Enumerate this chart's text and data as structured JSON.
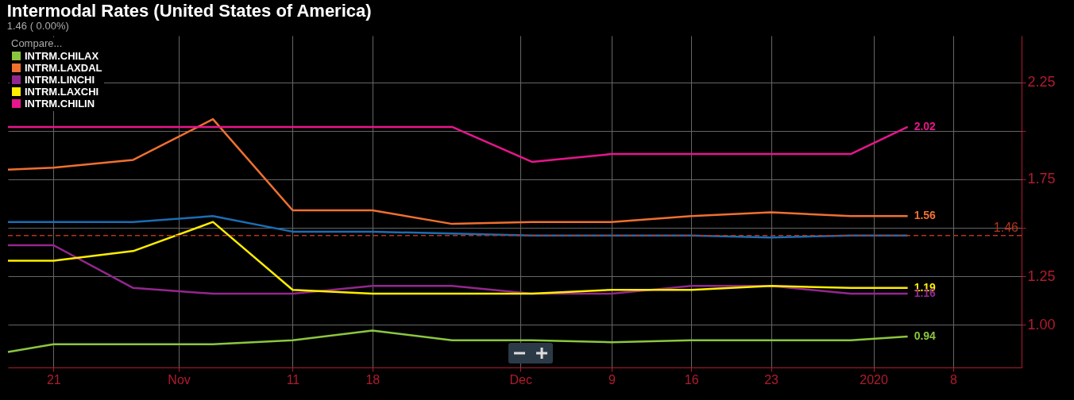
{
  "chart_data": {
    "type": "line",
    "title": "Intermodal Rates (United States of America)",
    "subtitle": "1.46 ( 0.00%)",
    "legend_title": "Compare...",
    "x": [
      "2019-10-17",
      "2019-10-21",
      "2019-10-28",
      "2019-11-04",
      "2019-11-11",
      "2019-11-18",
      "2019-11-25",
      "2019-12-02",
      "2019-12-09",
      "2019-12-16",
      "2019-12-23",
      "2019-12-30",
      "2020-01-04"
    ],
    "series": [
      {
        "name": "INTRM.CHILAX",
        "color": "#8cc63f",
        "values": [
          0.86,
          0.9,
          0.9,
          0.9,
          0.92,
          0.97,
          0.92,
          0.92,
          0.91,
          0.92,
          0.92,
          0.92,
          0.94
        ],
        "value_labels": [
          null,
          null,
          null,
          null,
          null,
          null,
          null,
          null,
          null,
          null,
          null,
          null,
          "0.94"
        ]
      },
      {
        "name": "INTRM.LAXDAL",
        "color": "#f07030",
        "values": [
          1.8,
          1.81,
          1.85,
          2.06,
          1.59,
          1.59,
          1.52,
          1.53,
          1.53,
          1.56,
          1.58,
          1.56,
          1.56
        ],
        "value_labels": [
          null,
          null,
          null,
          null,
          null,
          null,
          null,
          null,
          null,
          null,
          null,
          null,
          "1.56"
        ]
      },
      {
        "name": "INTRM.LINCHI",
        "color": "#93278f",
        "values": [
          1.41,
          1.41,
          1.19,
          1.16,
          1.16,
          1.2,
          1.2,
          1.16,
          1.16,
          1.2,
          1.2,
          1.16,
          1.16
        ],
        "value_labels": [
          null,
          null,
          null,
          null,
          null,
          null,
          null,
          null,
          null,
          null,
          null,
          null,
          "1.16"
        ]
      },
      {
        "name": "INTRM.LAXCHI",
        "color": "#ffee00",
        "values": [
          1.33,
          1.33,
          1.38,
          1.53,
          1.18,
          1.16,
          1.16,
          1.16,
          1.18,
          1.18,
          1.2,
          1.19,
          1.19
        ],
        "value_labels": [
          null,
          null,
          null,
          null,
          null,
          null,
          null,
          null,
          null,
          null,
          null,
          null,
          "1.19"
        ]
      },
      {
        "name": "INTRM.CHILIN",
        "color": "#e6168c",
        "values": [
          2.02,
          2.02,
          2.02,
          2.02,
          2.02,
          2.02,
          2.02,
          1.84,
          1.88,
          1.88,
          1.88,
          1.88,
          2.02
        ],
        "value_labels": [
          null,
          null,
          null,
          null,
          null,
          null,
          null,
          null,
          null,
          null,
          null,
          null,
          "2.02"
        ]
      },
      {
        "color": "#1a6eb5",
        "values": [
          1.53,
          1.53,
          1.53,
          1.56,
          1.48,
          1.48,
          1.47,
          1.46,
          1.46,
          1.46,
          1.45,
          1.46,
          1.46
        ]
      }
    ],
    "xlim": [
      "2019-10-17",
      "2020-01-14"
    ],
    "xticks": [
      {
        "value": "2019-10-21",
        "label": "21"
      },
      {
        "value": "2019-11-01",
        "label": "Nov"
      },
      {
        "value": "2019-11-11",
        "label": "11"
      },
      {
        "value": "2019-11-18",
        "label": "18"
      },
      {
        "value": "2019-12-01",
        "label": "Dec"
      },
      {
        "value": "2019-12-09",
        "label": "9"
      },
      {
        "value": "2019-12-16",
        "label": "16"
      },
      {
        "value": "2019-12-23",
        "label": "23"
      },
      {
        "value": "2020-01-01",
        "label": "2020"
      },
      {
        "value": "2020-01-08",
        "label": "8"
      }
    ],
    "ylim": [
      0.78,
      2.49
    ],
    "yticks": [
      {
        "value": 1,
        "label": "1.00"
      },
      {
        "value": 1.25,
        "label": "1.25"
      },
      {
        "value": 1.5,
        "label": null
      },
      {
        "value": 1.75,
        "label": "1.75"
      },
      {
        "value": 2,
        "label": null
      },
      {
        "value": 2.25,
        "label": "2.25"
      }
    ],
    "ref_lines": [
      {
        "axis": "y",
        "value": 1.46,
        "label": "1.46",
        "color": "#b8341a",
        "line_style": "dashed"
      }
    ],
    "grid": true,
    "legend": "top left",
    "line_style": "solid",
    "marker": "none"
  }
}
